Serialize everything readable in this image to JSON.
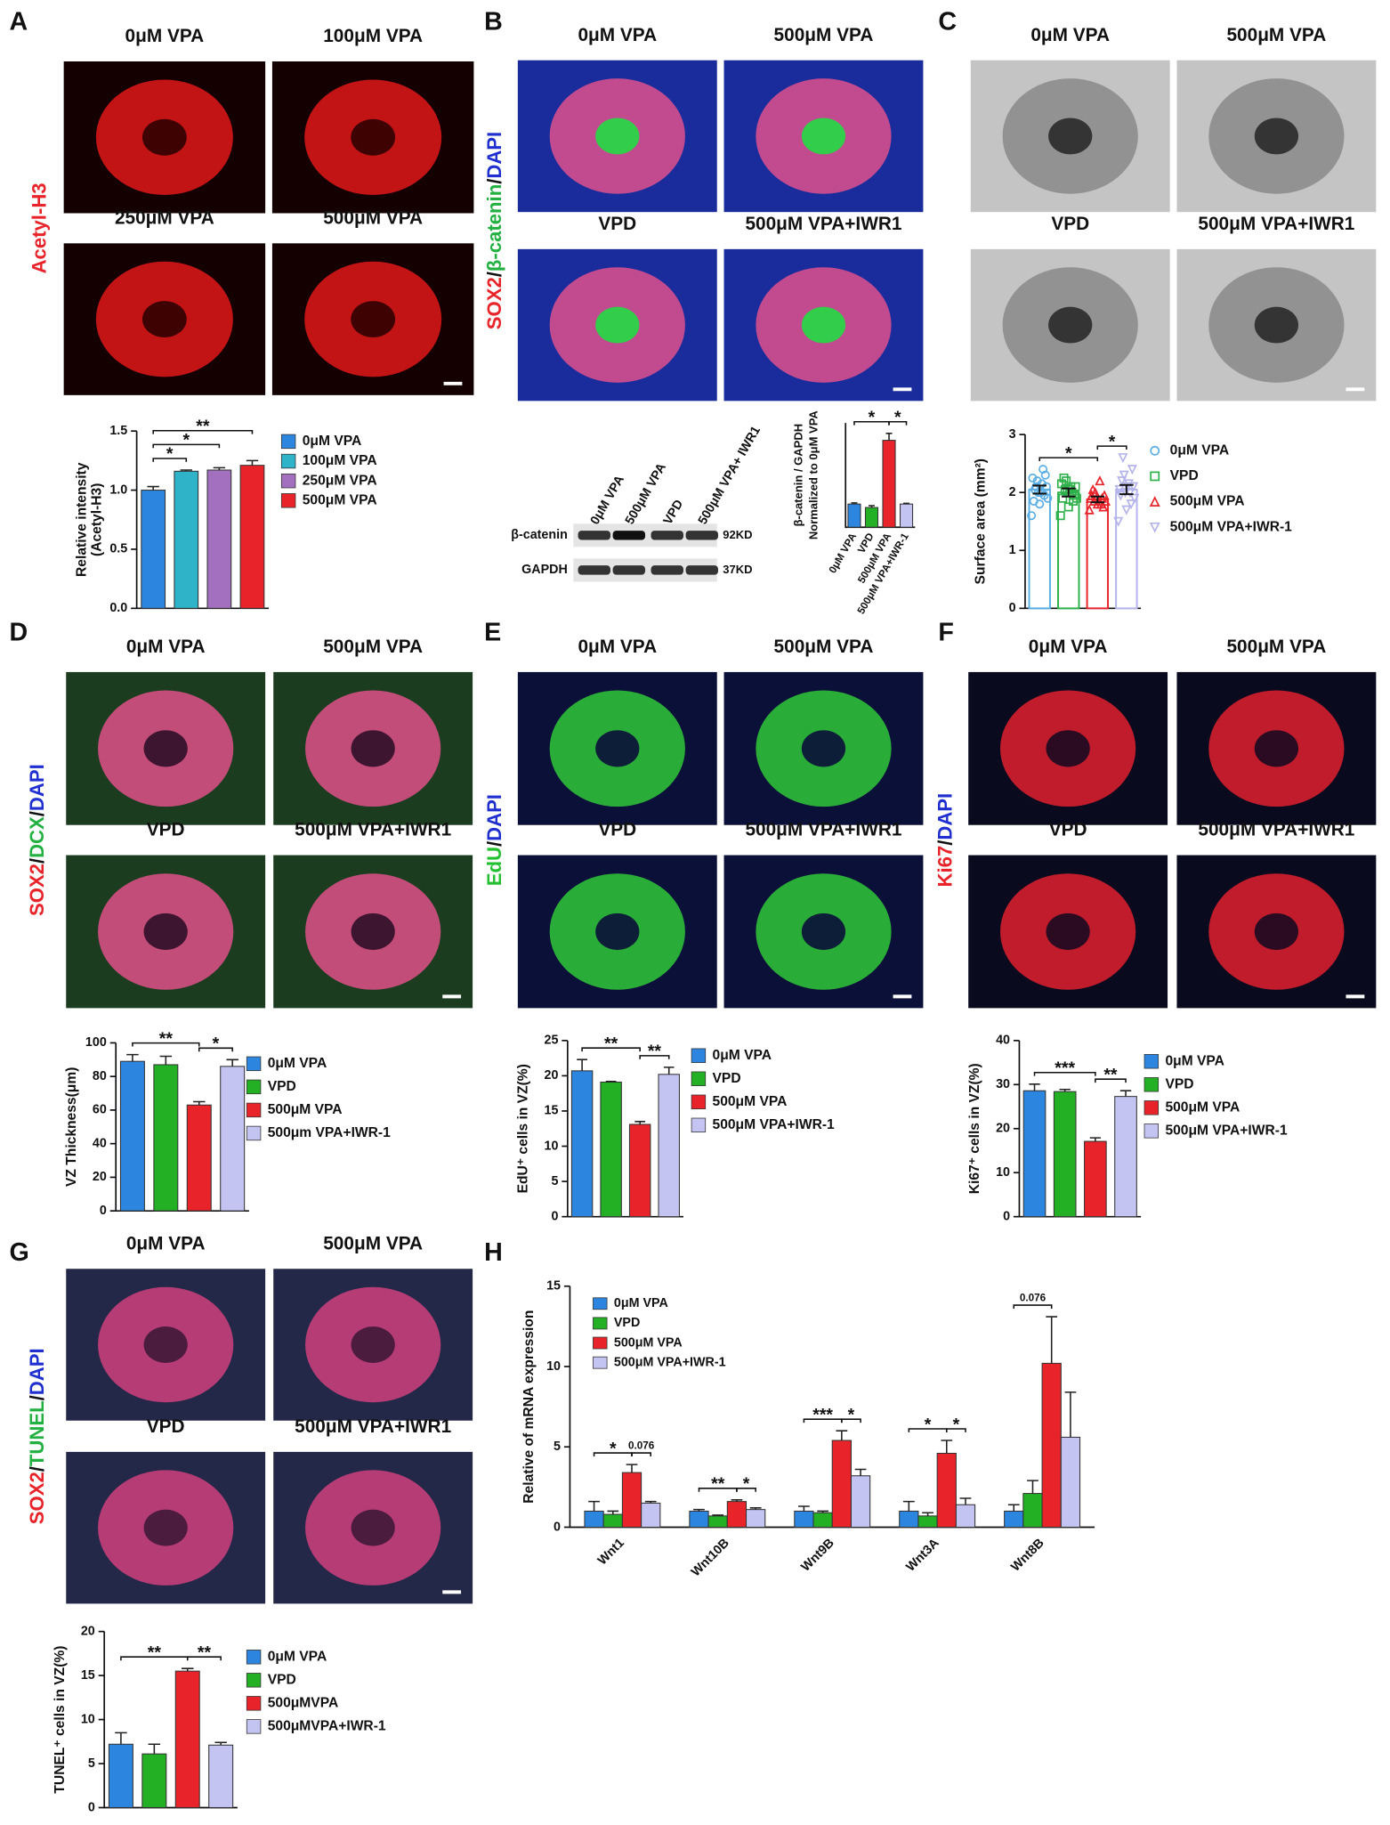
{
  "figure": {
    "panels": [
      {
        "letter": "A",
        "stain": [
          "Acetyl-H3"
        ],
        "stain_colors": [
          "#e8242a"
        ],
        "images": [
          "0μM VPA",
          "100μM VPA",
          "250μM VPA",
          "500μM VPA"
        ]
      },
      {
        "letter": "B",
        "stain": [
          "SOX2",
          "/",
          "β-catenin",
          "/",
          "DAPI"
        ],
        "stain_colors": [
          "#e8242a",
          "#111111",
          "#22b040",
          "#111111",
          "#2030d0"
        ],
        "images": [
          "0μM VPA",
          "500μM VPA",
          "VPD",
          "500μM VPA+IWR1"
        ]
      },
      {
        "letter": "C",
        "images": [
          "0μM VPA",
          "500μM VPA",
          "VPD",
          "500μM VPA+IWR1"
        ]
      },
      {
        "letter": "D",
        "stain": [
          "SOX2",
          "/",
          "DCX",
          "/",
          "DAPI"
        ],
        "stain_colors": [
          "#e8242a",
          "#111111",
          "#22b040",
          "#111111",
          "#2030d0"
        ],
        "images": [
          "0μM VPA",
          "500μM VPA",
          "VPD",
          "500μM VPA+IWR1"
        ]
      },
      {
        "letter": "E",
        "stain": [
          "EdU",
          "/",
          "DAPI"
        ],
        "stain_colors": [
          "#22c030",
          "#111111",
          "#2030d0"
        ],
        "images": [
          "0μM VPA",
          "500μM VPA",
          "VPD",
          "500μM VPA+IWR1"
        ]
      },
      {
        "letter": "F",
        "stain": [
          "Ki67",
          "/",
          "DAPI"
        ],
        "stain_colors": [
          "#e8242a",
          "#111111",
          "#2030d0"
        ],
        "images": [
          "0μM VPA",
          "500μM VPA",
          "VPD",
          "500μM VPA+IWR1"
        ]
      },
      {
        "letter": "G",
        "stain": [
          "SOX2",
          "/",
          "TUNEL",
          "/",
          "DAPI"
        ],
        "stain_colors": [
          "#e8242a",
          "#111111",
          "#22b040",
          "#111111",
          "#2030d0"
        ],
        "images": [
          "0μM VPA",
          "500μM VPA",
          "VPD",
          "500μM VPA+IWR1"
        ]
      },
      {
        "letter": "H"
      }
    ],
    "blot": {
      "lanes": [
        "0μM VPA",
        "500μM VPA",
        "VPD",
        "500μM VPA+ IWR1"
      ],
      "rows": [
        {
          "protein": "β-catenin",
          "size": "92KD"
        },
        {
          "protein": "GAPDH",
          "size": "37KD"
        }
      ]
    }
  },
  "chart_data": [
    {
      "type": "bar",
      "ylabel": [
        "Relative intensity",
        "(Acetyl-H3)"
      ],
      "categories": [
        "0μM VPA",
        "100μM VPA",
        "250μM VPA",
        "500μM VPA"
      ],
      "values": [
        1.0,
        1.16,
        1.17,
        1.21
      ],
      "errors": [
        0.03,
        0.01,
        0.02,
        0.04
      ],
      "colors": [
        "#2c86e0",
        "#2fb3c9",
        "#a36fbf",
        "#e8242a"
      ],
      "ylim": [
        0,
        1.5
      ],
      "yticks": [
        {
          "value": 0,
          "label": "0.0"
        },
        {
          "value": 0.5,
          "label": "0.5"
        },
        {
          "value": 1,
          "label": "1.0"
        },
        {
          "value": 1.5,
          "label": "1.5"
        }
      ],
      "legend": "right",
      "significance": [
        {
          "label": "*",
          "between": [
            0,
            1
          ]
        },
        {
          "label": "*",
          "between": [
            0,
            2
          ]
        },
        {
          "label": "**",
          "between": [
            0,
            3
          ]
        }
      ]
    },
    {
      "type": "bar",
      "ylabel": [
        "β-catenin / GAPDH",
        "Normalized to 0μM VPA"
      ],
      "categories": [
        "0μM VPA",
        "VPD",
        "500μM VPA",
        "500μM VPA+IWR-1"
      ],
      "values": [
        1.0,
        0.85,
        3.75,
        1.0
      ],
      "errors": [
        0.05,
        0.08,
        0.3,
        0.03
      ],
      "colors": [
        "#2c86e0",
        "#24b024",
        "#e8242a",
        "#c4c4f2"
      ],
      "ylim": [
        0,
        4.5
      ],
      "significance": [
        {
          "label": "*",
          "between": [
            0,
            2
          ]
        },
        {
          "label": "*",
          "between": [
            2,
            3
          ]
        }
      ]
    },
    {
      "type": "dotbar",
      "ylabel": [
        "Surface area (mm²)"
      ],
      "categories": [
        "0μM VPA",
        "VPD",
        "500μM VPA",
        "500μM VPA+IWR-1"
      ],
      "values": [
        2.05,
        2.0,
        1.88,
        2.05
      ],
      "errors": [
        0.07,
        0.07,
        0.05,
        0.08
      ],
      "points": [
        [
          1.6,
          1.8,
          1.9,
          2.0,
          2.1,
          2.2,
          2.3,
          2.1,
          1.95,
          2.05,
          2.4,
          1.85,
          2.15,
          2.25,
          2.0
        ],
        [
          1.6,
          1.75,
          1.9,
          2.0,
          2.1,
          2.2,
          1.95,
          2.05,
          1.85,
          2.25,
          2.0,
          1.9,
          2.1,
          2.15,
          2.05
        ],
        [
          1.7,
          1.8,
          1.85,
          1.9,
          1.95,
          2.0,
          1.75,
          1.85,
          1.9,
          2.05,
          1.8,
          1.95,
          2.2,
          1.9,
          1.85
        ],
        [
          1.5,
          1.7,
          1.9,
          2.0,
          2.1,
          2.3,
          2.4,
          2.6,
          1.8,
          2.2,
          2.0,
          1.95,
          2.15,
          2.05,
          2.1
        ]
      ],
      "colors": [
        "#5aaee6",
        "#2eb04a",
        "#e8242a",
        "#b4b4ec"
      ],
      "markers": [
        "circle",
        "square",
        "triangle-up",
        "triangle-down"
      ],
      "ylim": [
        0,
        3
      ],
      "yticks": [
        0,
        1,
        2,
        3
      ],
      "legend": "right",
      "significance": [
        {
          "label": "*",
          "between": [
            0,
            2
          ]
        },
        {
          "label": "*",
          "between": [
            2,
            3
          ]
        }
      ]
    },
    {
      "type": "bar",
      "ylabel": [
        "VZ Thickness(μm)"
      ],
      "categories": [
        "0μM VPA",
        "VPD",
        "500μM VPA",
        "500μm VPA+IWR-1"
      ],
      "values": [
        89,
        87,
        63,
        86
      ],
      "errors": [
        4,
        5,
        2,
        4
      ],
      "colors": [
        "#2c86e0",
        "#24b024",
        "#e8242a",
        "#c4c4f2"
      ],
      "ylim": [
        0,
        100
      ],
      "yticks": [
        0,
        20,
        40,
        60,
        80,
        100
      ],
      "legend": "right",
      "significance": [
        {
          "label": "**",
          "between": [
            0,
            2
          ]
        },
        {
          "label": "*",
          "between": [
            2,
            3
          ]
        }
      ]
    },
    {
      "type": "bar",
      "ylabel": [
        "EdU⁺ cells in VZ(%)"
      ],
      "categories": [
        "0μM VPA",
        "VPD",
        "500μM VPA",
        "500μM VPA+IWR-1"
      ],
      "values": [
        20.7,
        19.1,
        13.1,
        20.2
      ],
      "errors": [
        1.6,
        0.1,
        0.4,
        1.0
      ],
      "colors": [
        "#2c86e0",
        "#24b024",
        "#e8242a",
        "#c4c4f2"
      ],
      "ylim": [
        0,
        25
      ],
      "yticks": [
        0,
        5,
        10,
        15,
        20,
        25
      ],
      "legend": "right",
      "significance": [
        {
          "label": "**",
          "between": [
            0,
            2
          ]
        },
        {
          "label": "**",
          "between": [
            2,
            3
          ]
        }
      ]
    },
    {
      "type": "bar",
      "ylabel": [
        "Ki67⁺ cells in VZ(%)"
      ],
      "categories": [
        "0μM VPA",
        "VPD",
        "500μM VPA",
        "500μM VPA+IWR-1"
      ],
      "values": [
        28.6,
        28.4,
        17.1,
        27.3
      ],
      "errors": [
        1.5,
        0.5,
        0.8,
        1.3
      ],
      "colors": [
        "#2c86e0",
        "#24b024",
        "#e8242a",
        "#c4c4f2"
      ],
      "ylim": [
        0,
        40
      ],
      "yticks": [
        0,
        10,
        20,
        30,
        40
      ],
      "legend": "right",
      "significance": [
        {
          "label": "***",
          "between": [
            0,
            2
          ]
        },
        {
          "label": "**",
          "between": [
            2,
            3
          ]
        }
      ]
    },
    {
      "type": "bar",
      "ylabel": [
        "TUNEL⁺ cells in VZ(%)"
      ],
      "categories": [
        "0μM VPA",
        "VPD",
        "500μMVPA",
        "500μMVPA+IWR-1"
      ],
      "values": [
        7.2,
        6.1,
        15.5,
        7.1
      ],
      "errors": [
        1.3,
        1.1,
        0.3,
        0.3
      ],
      "colors": [
        "#2c86e0",
        "#24b024",
        "#e8242a",
        "#c4c4f2"
      ],
      "ylim": [
        0,
        20
      ],
      "yticks": [
        0,
        5,
        10,
        15,
        20
      ],
      "legend": "right",
      "significance": [
        {
          "label": "**",
          "between": [
            0,
            2
          ]
        },
        {
          "label": "**",
          "between": [
            2,
            3
          ]
        }
      ]
    },
    {
      "type": "bar",
      "ylabel": [
        "Relative of mRNA expression"
      ],
      "categories": [
        "Wnt1",
        "Wnt10B",
        "Wnt9B",
        "Wnt3A",
        "Wnt8B"
      ],
      "series": [
        {
          "name": "0μM VPA",
          "color": "#2c86e0",
          "values": [
            1.0,
            1.0,
            1.0,
            1.0,
            1.0
          ],
          "errors": [
            0.6,
            0.1,
            0.3,
            0.6,
            0.4
          ]
        },
        {
          "name": "VPD",
          "color": "#24b024",
          "values": [
            0.8,
            0.7,
            0.9,
            0.7,
            2.1
          ],
          "errors": [
            0.2,
            0.05,
            0.1,
            0.2,
            0.8
          ]
        },
        {
          "name": "500μM VPA",
          "color": "#e8242a",
          "values": [
            3.4,
            1.6,
            5.4,
            4.6,
            10.2
          ],
          "errors": [
            0.5,
            0.1,
            0.6,
            0.8,
            2.9
          ]
        },
        {
          "name": "500μM VPA+IWR-1",
          "color": "#c4c4f2",
          "values": [
            1.5,
            1.1,
            3.2,
            1.4,
            5.6
          ],
          "errors": [
            0.1,
            0.1,
            0.4,
            0.4,
            2.8
          ]
        }
      ],
      "ylim": [
        0,
        15
      ],
      "yticks": [
        0,
        5,
        10,
        15
      ],
      "legend": "upper left",
      "significance": [
        {
          "label": "*",
          "category": 0,
          "between": [
            0,
            2
          ]
        },
        {
          "label": "0.076",
          "category": 0,
          "between": [
            2,
            3
          ]
        },
        {
          "label": "**",
          "category": 1,
          "between": [
            0,
            2
          ]
        },
        {
          "label": "*",
          "category": 1,
          "between": [
            2,
            3
          ]
        },
        {
          "label": "***",
          "category": 2,
          "between": [
            0,
            2
          ]
        },
        {
          "label": "*",
          "category": 2,
          "between": [
            2,
            3
          ]
        },
        {
          "label": "*",
          "category": 3,
          "between": [
            0,
            2
          ]
        },
        {
          "label": "*",
          "category": 3,
          "between": [
            2,
            3
          ]
        },
        {
          "label": "0.076",
          "category": 4,
          "between": [
            0,
            2
          ]
        }
      ]
    }
  ]
}
